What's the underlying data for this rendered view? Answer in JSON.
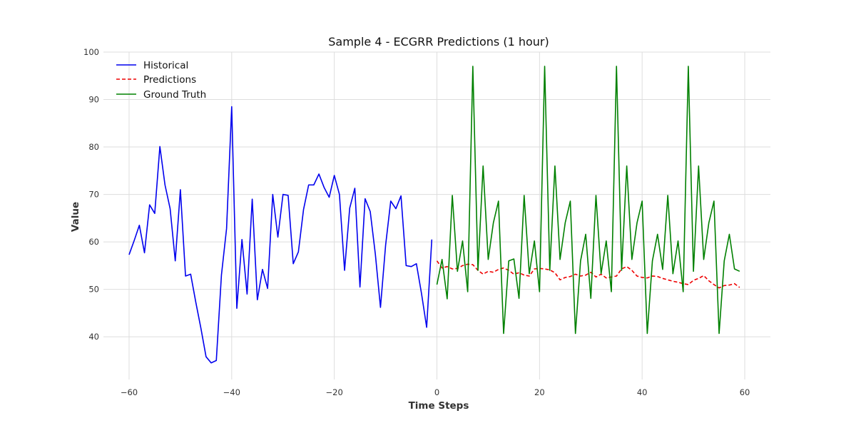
{
  "chart_data": {
    "type": "line",
    "title": "Sample 4 - ECGRR Predictions (1 hour)",
    "xlabel": "Time Steps",
    "ylabel": "Value",
    "xlim": [
      -65,
      65
    ],
    "ylim": [
      31,
      100
    ],
    "xticks": [
      -60,
      -40,
      -20,
      0,
      20,
      40,
      60
    ],
    "yticks": [
      40,
      50,
      60,
      70,
      80,
      90,
      100
    ],
    "xtick_labels": [
      "−60",
      "−40",
      "−20",
      "0",
      "20",
      "40",
      "60"
    ],
    "ytick_labels": [
      "40",
      "50",
      "60",
      "70",
      "80",
      "90",
      "100"
    ],
    "grid": true,
    "legend_position": "top-left",
    "series": [
      {
        "name": "Historical",
        "color": "#0000ee",
        "style": "solid",
        "x": [
          -60,
          -59,
          -58,
          -57,
          -56,
          -55,
          -54,
          -53,
          -52,
          -51,
          -50,
          -49,
          -48,
          -47,
          -46,
          -45,
          -44,
          -43,
          -42,
          -41,
          -40,
          -39,
          -38,
          -37,
          -36,
          -35,
          -34,
          -33,
          -32,
          -31,
          -30,
          -29,
          -28,
          -27,
          -26,
          -25,
          -24,
          -23,
          -22,
          -21,
          -20,
          -19,
          -18,
          -17,
          -16,
          -15,
          -14,
          -13,
          -12,
          -11,
          -10,
          -9,
          -8,
          -7,
          -6,
          -5,
          -4,
          -3,
          -2,
          -1
        ],
        "y": [
          57.3,
          60.3,
          63.5,
          57.7,
          67.8,
          66.0,
          80.1,
          72.0,
          67.0,
          56.0,
          71.0,
          52.8,
          53.2,
          47.3,
          41.8,
          35.8,
          34.5,
          35.0,
          53.0,
          62.8,
          88.5,
          46.0,
          60.5,
          49.0,
          69.0,
          47.8,
          54.2,
          50.2,
          70.0,
          61.0,
          70.0,
          69.8,
          55.4,
          57.9,
          66.8,
          72.0,
          72.0,
          74.3,
          71.5,
          69.4,
          74.0,
          70.0,
          54.0,
          67.1,
          71.3,
          50.5,
          69.1,
          66.4,
          57.4,
          46.2,
          59.3,
          68.6,
          67.0,
          69.7,
          55.0,
          54.8,
          55.4,
          49.1,
          42.0,
          60.5
        ]
      },
      {
        "name": "Predictions",
        "color": "#ee0000",
        "style": "dashed",
        "x": [
          0,
          1,
          2,
          3,
          4,
          5,
          6,
          7,
          8,
          9,
          10,
          11,
          12,
          13,
          14,
          15,
          16,
          17,
          18,
          19,
          20,
          21,
          22,
          23,
          24,
          25,
          26,
          27,
          28,
          29,
          30,
          31,
          32,
          33,
          34,
          35,
          36,
          37,
          38,
          39,
          40,
          41,
          42,
          43,
          44,
          45,
          46,
          47,
          48,
          49,
          50,
          51,
          52,
          53,
          54,
          55,
          56,
          57,
          58,
          59
        ],
        "y": [
          56.0,
          54.5,
          54.8,
          54.3,
          54.4,
          55.0,
          55.3,
          55.2,
          54.0,
          53.2,
          53.8,
          53.6,
          54.2,
          54.5,
          54.0,
          53.2,
          53.5,
          53.0,
          52.8,
          54.3,
          54.4,
          54.3,
          54.1,
          53.5,
          52.0,
          52.5,
          52.7,
          53.2,
          52.8,
          53.0,
          53.6,
          52.6,
          53.2,
          52.4,
          52.6,
          52.8,
          54.3,
          54.8,
          54.0,
          52.8,
          52.5,
          52.4,
          52.8,
          52.7,
          52.3,
          52.0,
          51.7,
          51.5,
          51.2,
          51.0,
          51.9,
          52.3,
          52.9,
          51.8,
          51.0,
          50.3,
          50.8,
          50.9,
          51.2,
          50.4
        ]
      },
      {
        "name": "Ground Truth",
        "color": "#008000",
        "style": "solid",
        "x": [
          0,
          1,
          2,
          3,
          4,
          5,
          6,
          7,
          8,
          9,
          10,
          11,
          12,
          13,
          14,
          15,
          16,
          17,
          18,
          19,
          20,
          21,
          22,
          23,
          24,
          25,
          26,
          27,
          28,
          29,
          30,
          31,
          32,
          33,
          34,
          35,
          36,
          37,
          38,
          39,
          40,
          41,
          42,
          43,
          44,
          45,
          46,
          47,
          48,
          49,
          50,
          51,
          52,
          53,
          54,
          55,
          56,
          57,
          58,
          59
        ],
        "y": [
          51.0,
          56.3,
          48.0,
          69.8,
          53.8,
          60.2,
          49.5,
          97.0,
          54.0,
          76.0,
          56.3,
          64.0,
          68.6,
          40.7,
          56.0,
          56.4,
          48.1,
          69.8,
          53.3,
          60.2,
          49.5,
          97.0,
          54.0,
          76.0,
          56.3,
          64.0,
          68.6,
          40.7,
          56.0,
          61.6,
          48.1,
          69.8,
          53.3,
          60.2,
          49.5,
          97.0,
          54.0,
          76.0,
          56.3,
          64.0,
          68.6,
          40.7,
          56.0,
          61.6,
          54.2,
          69.8,
          53.3,
          60.2,
          49.5,
          97.0,
          53.8,
          76.0,
          56.3,
          64.0,
          68.6,
          40.7,
          56.0,
          61.6,
          54.3,
          53.8
        ]
      }
    ]
  }
}
